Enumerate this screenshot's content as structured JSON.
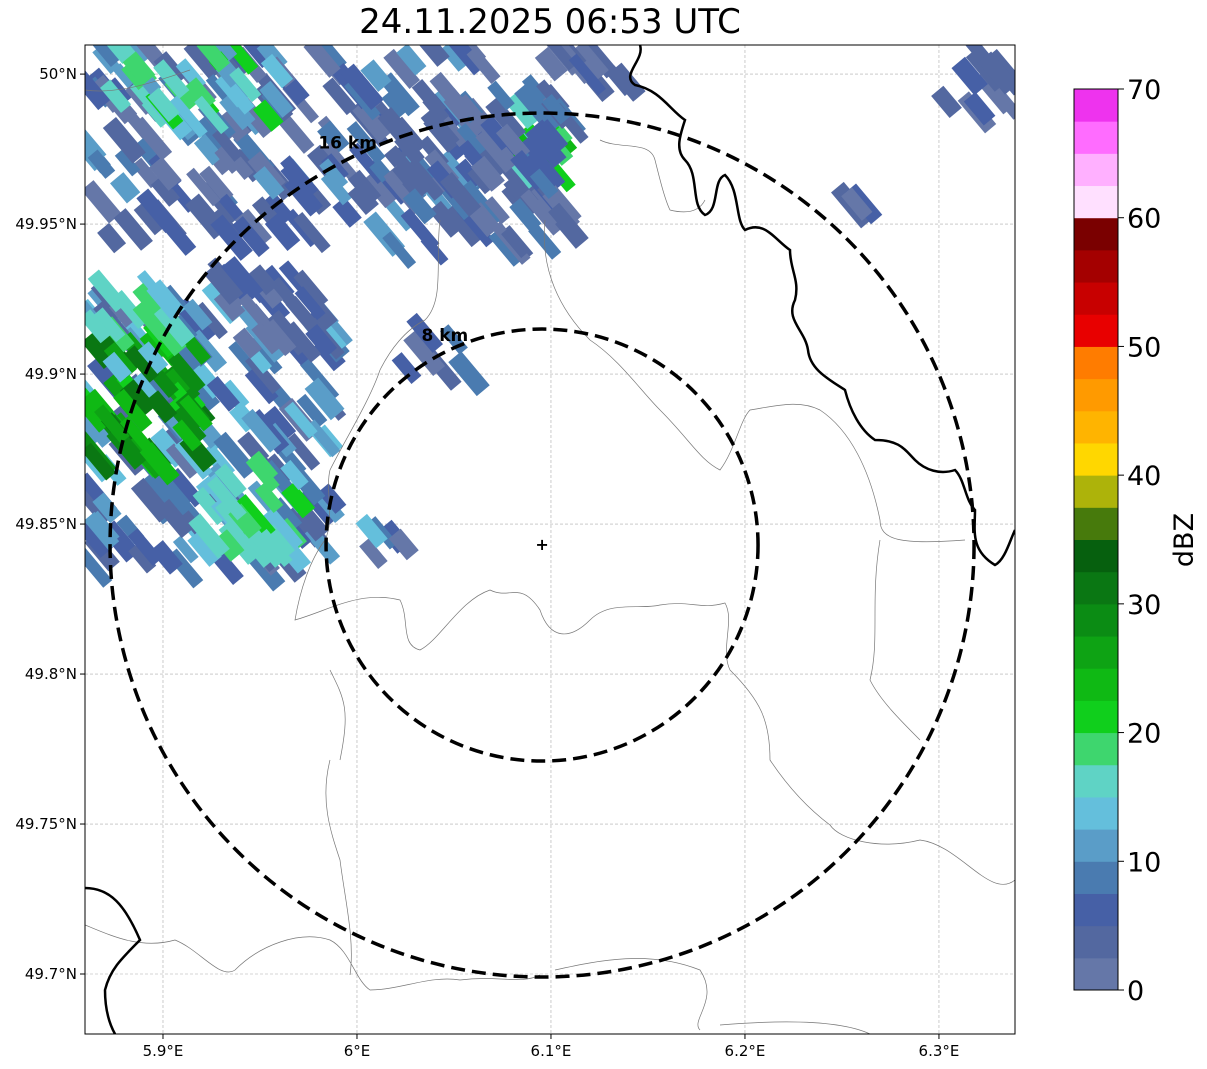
{
  "title": "24.11.2025 06:53 UTC",
  "chart_data": {
    "type": "heatmap",
    "title": "24.11.2025 06:53 UTC",
    "xlim": [
      5.8598,
      6.3392
    ],
    "ylim": [
      49.68,
      50.0097
    ],
    "x_ticks": [
      {
        "v": 5.9,
        "label": "5.9°E"
      },
      {
        "v": 6.0,
        "label": "6°E"
      },
      {
        "v": 6.1,
        "label": "6.1°E"
      },
      {
        "v": 6.2,
        "label": "6.2°E"
      },
      {
        "v": 6.3,
        "label": "6.3°E"
      }
    ],
    "y_ticks": [
      {
        "v": 50.0,
        "label": "50°N"
      },
      {
        "v": 49.95,
        "label": "49.95°N"
      },
      {
        "v": 49.9,
        "label": "49.9°N"
      },
      {
        "v": 49.85,
        "label": "49.85°N"
      },
      {
        "v": 49.8,
        "label": "49.8°N"
      },
      {
        "v": 49.75,
        "label": "49.75°N"
      },
      {
        "v": 49.7,
        "label": "49.7°N"
      }
    ],
    "grid": true,
    "radar_site": {
      "lon": 6.0954,
      "lat": 49.843
    },
    "range_rings": [
      {
        "km": 8,
        "label": "8 km"
      },
      {
        "km": 16,
        "label": "16 km"
      }
    ],
    "colorbar": {
      "label": "dBZ",
      "min": 0,
      "max": 70,
      "step": 2.5,
      "ticks": [
        0,
        10,
        20,
        30,
        40,
        50,
        60,
        70
      ],
      "colors": [
        "#6577a8",
        "#5368a0",
        "#4660a6",
        "#4a7bb0",
        "#5a9dc8",
        "#64bfdc",
        "#5fd3c5",
        "#3ed66e",
        "#10cf1c",
        "#0fb914",
        "#0ea314",
        "#0b8c14",
        "#0a7713",
        "#06600e",
        "#477a0c",
        "#adb30a",
        "#ffd700",
        "#ffb400",
        "#ff9a00",
        "#ff7c00",
        "#e80000",
        "#c80000",
        "#a40000",
        "#7a0000",
        "#ffe0ff",
        "#ffb0ff",
        "#ff6cff",
        "#ee33ee"
      ]
    },
    "echo_clusters": [
      {
        "lon": [
          5.86,
          6.07
        ],
        "lat": [
          49.945,
          50.01
        ],
        "dbz": [
          0,
          12
        ],
        "n": 170
      },
      {
        "lon": [
          5.87,
          5.96
        ],
        "lat": [
          49.985,
          50.01
        ],
        "dbz": [
          10,
          22
        ],
        "n": 30
      },
      {
        "lon": [
          6.08,
          6.105
        ],
        "lat": [
          49.965,
          49.99
        ],
        "dbz": [
          14,
          24
        ],
        "n": 14
      },
      {
        "lon": [
          6.02,
          6.11
        ],
        "lat": [
          49.94,
          49.995
        ],
        "dbz": [
          0,
          10
        ],
        "n": 70
      },
      {
        "lon": [
          5.86,
          5.99
        ],
        "lat": [
          49.835,
          49.925
        ],
        "dbz": [
          2,
          15
        ],
        "n": 150
      },
      {
        "lon": [
          5.86,
          5.92
        ],
        "lat": [
          49.87,
          49.915
        ],
        "dbz": [
          20,
          33
        ],
        "n": 45
      },
      {
        "lon": [
          5.92,
          5.97
        ],
        "lat": [
          49.84,
          49.87
        ],
        "dbz": [
          12,
          22
        ],
        "n": 25
      },
      {
        "lon": [
          5.86,
          5.91
        ],
        "lat": [
          49.9,
          49.93
        ],
        "dbz": [
          12,
          20
        ],
        "n": 15
      },
      {
        "lon": [
          5.93,
          5.985
        ],
        "lat": [
          49.91,
          49.935
        ],
        "dbz": [
          0,
          8
        ],
        "n": 25
      },
      {
        "lon": [
          6.025,
          6.06
        ],
        "lat": [
          49.9,
          49.915
        ],
        "dbz": [
          0,
          8
        ],
        "n": 6
      },
      {
        "lon": [
          6.1,
          6.14
        ],
        "lat": [
          49.995,
          50.01
        ],
        "dbz": [
          0,
          6
        ],
        "n": 12
      },
      {
        "lon": [
          6.3,
          6.335
        ],
        "lat": [
          49.985,
          50.008
        ],
        "dbz": [
          0,
          6
        ],
        "n": 10
      },
      {
        "lon": [
          6.255,
          6.268
        ],
        "lat": [
          49.948,
          49.958
        ],
        "dbz": [
          2,
          6
        ],
        "n": 3
      },
      {
        "lon": [
          6.0,
          6.03
        ],
        "lat": [
          49.84,
          49.85
        ],
        "dbz": [
          2,
          16
        ],
        "n": 5
      }
    ]
  }
}
